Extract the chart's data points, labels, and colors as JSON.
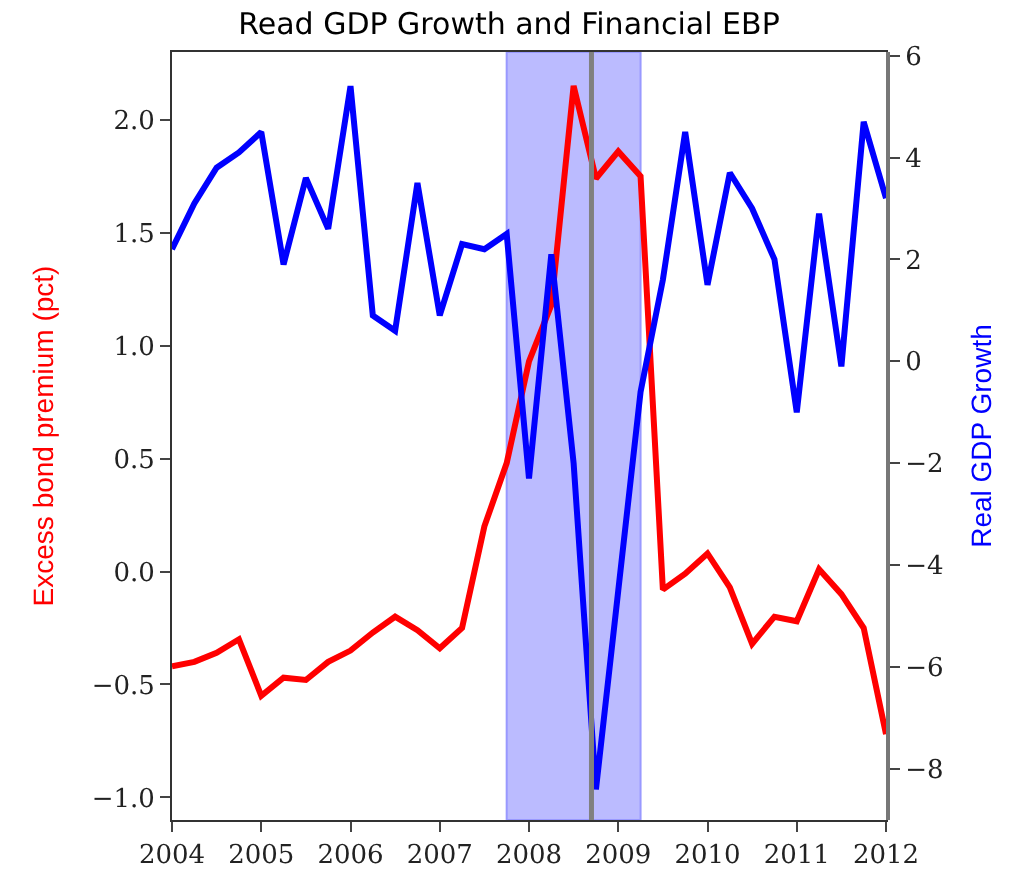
{
  "chart_data": {
    "type": "line",
    "title": "Read GDP Growth and Financial EBP",
    "ylabel": "Excess bond premium (pct)",
    "y2label": "Real GDP Growth",
    "x": [
      2004.0,
      2004.25,
      2004.5,
      2004.75,
      2005.0,
      2005.25,
      2005.5,
      2005.75,
      2006.0,
      2006.25,
      2006.5,
      2006.75,
      2007.0,
      2007.25,
      2007.5,
      2007.75,
      2008.0,
      2008.25,
      2008.5,
      2008.75,
      2009.0,
      2009.25,
      2009.5,
      2009.75,
      2010.0,
      2010.25,
      2010.5,
      2010.75,
      2011.0,
      2011.25,
      2011.5,
      2011.75,
      2012.0
    ],
    "series": [
      {
        "color": "#ff0000",
        "values": [
          -0.42,
          -0.4,
          -0.36,
          -0.3,
          -0.55,
          -0.47,
          -0.48,
          -0.4,
          -0.35,
          -0.27,
          -0.2,
          -0.26,
          -0.34,
          -0.25,
          0.2,
          0.48,
          0.93,
          1.18,
          2.15,
          1.74,
          1.86,
          1.75,
          -0.08,
          -0.01,
          0.08,
          -0.07,
          -0.32,
          -0.2,
          -0.22,
          0.01,
          -0.1,
          -0.25,
          -0.72
        ]
      },
      {
        "color": "#0000ff",
        "axis": "y2",
        "values": [
          2.2,
          3.1,
          3.8,
          4.1,
          4.5,
          1.9,
          3.6,
          2.6,
          5.4,
          0.9,
          0.6,
          3.5,
          0.9,
          2.3,
          2.2,
          2.5,
          -2.3,
          2.1,
          -2.0,
          -8.4,
          -4.5,
          -0.6,
          1.6,
          4.5,
          1.5,
          3.7,
          3.0,
          2.0,
          -1.0,
          2.9,
          -0.1,
          4.7,
          3.2
        ]
      }
    ],
    "xlim": [
      2004,
      2012
    ],
    "xticks": [
      2004,
      2005,
      2006,
      2007,
      2008,
      2009,
      2010,
      2011,
      2012
    ],
    "ylim": [
      -1.1,
      2.3
    ],
    "yticks": [
      {
        "value": -1,
        "label": "−1.0"
      },
      -0.5,
      {
        "value": 0,
        "label": "0.0"
      },
      0.5,
      {
        "value": 1,
        "label": "1.0"
      },
      1.5,
      {
        "value": 2,
        "label": "2.0"
      }
    ],
    "y2lim": [
      -9.0,
      6.07
    ],
    "y2ticks": [
      -8,
      -6,
      -4,
      -2,
      0,
      2,
      4,
      6
    ],
    "bands": [
      {
        "axis": "x",
        "from": 2007.75,
        "to": 2009.25,
        "color": "#bbbbff"
      }
    ],
    "ref_lines": [
      {
        "axis": "x",
        "value": 2008.7,
        "color": "#808080"
      }
    ],
    "grid": false,
    "line_style": "solid",
    "marker": "none"
  }
}
